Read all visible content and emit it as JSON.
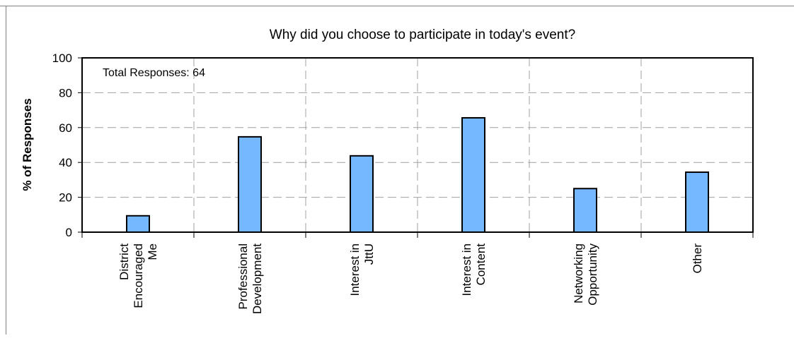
{
  "chart_data": {
    "type": "bar",
    "title": "Why did you choose to participate in today's event?",
    "ylabel": "% of Responses",
    "xlabel": "",
    "ylim": [
      0,
      100
    ],
    "yticks": [
      0,
      20,
      40,
      60,
      80,
      100
    ],
    "grid": true,
    "annotation": "Total Responses: 64",
    "bar_color": "#75B8FF",
    "categories": [
      [
        "District",
        "Encouraged",
        "Me"
      ],
      [
        "Professional",
        "Development"
      ],
      [
        "Interest in",
        "JttU"
      ],
      [
        "Interest in",
        "Content"
      ],
      [
        "Networking",
        "Opportunity"
      ],
      [
        "Other"
      ]
    ],
    "values": [
      9.4,
      54.7,
      43.8,
      65.6,
      25.0,
      34.4
    ]
  }
}
